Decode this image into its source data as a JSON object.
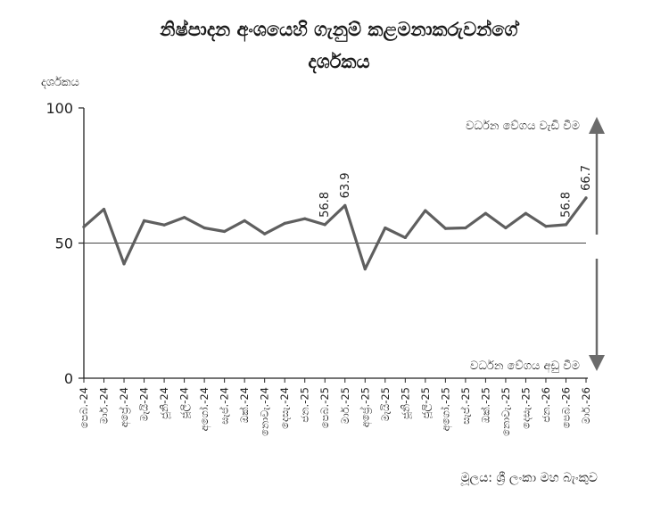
{
  "chart_data": {
    "type": "line",
    "title_line1": "නිෂ්පාදන අංශයෙහි ගැනුම් කළමනාකරුවන්ගේ",
    "title_line2": "දර්ශකය",
    "ylabel": "දර්ශකය",
    "ylim": [
      0,
      100
    ],
    "yticks": [
      "0",
      "50",
      "100"
    ],
    "categories": [
      "පෙබ.-24",
      "මාර්.-24",
      "අප්‍රේ.-24",
      "මැයි-24",
      "ජූනි-24",
      "ජූලි-24",
      "අගෝ.-24",
      "සැප්.-24",
      "ඔක්.-24",
      "නොවැ.-24",
      "දෙසැ.-24",
      "ජන.-25",
      "පෙබ.-25",
      "මාර්.-25",
      "අප්‍රේ.-25",
      "මැයි-25",
      "ජූනි-25",
      "ජූලි-25",
      "අගෝ.-25",
      "සැප්.-25",
      "ඔක්.-25",
      "නොවැ.-25",
      "දෙසැ.-25",
      "ජන.-26",
      "පෙබ.-26",
      "මාර්.-26"
    ],
    "values": [
      56.0,
      62.5,
      42.3,
      58.3,
      56.7,
      59.5,
      55.6,
      54.3,
      58.3,
      53.4,
      57.3,
      59.0,
      56.8,
      63.9,
      40.4,
      55.6,
      52.0,
      62.0,
      55.4,
      55.6,
      61.0,
      55.6,
      61.0,
      56.2,
      56.8,
      66.7
    ],
    "data_labels": [
      {
        "index": 12,
        "text": "56.8"
      },
      {
        "index": 13,
        "text": "63.9"
      },
      {
        "index": 24,
        "text": "56.8"
      },
      {
        "index": 25,
        "text": "66.7"
      }
    ],
    "threshold": 50,
    "annotation_up": "වර්ධන වේගය වැඩි වීම",
    "annotation_down": "වර්ධන වේගය අඩු වීම",
    "line_color": "#5f5f5f",
    "grid": false
  },
  "source_text": "මූලය: ශ්‍රී ලංකා මහ බැංකුව"
}
